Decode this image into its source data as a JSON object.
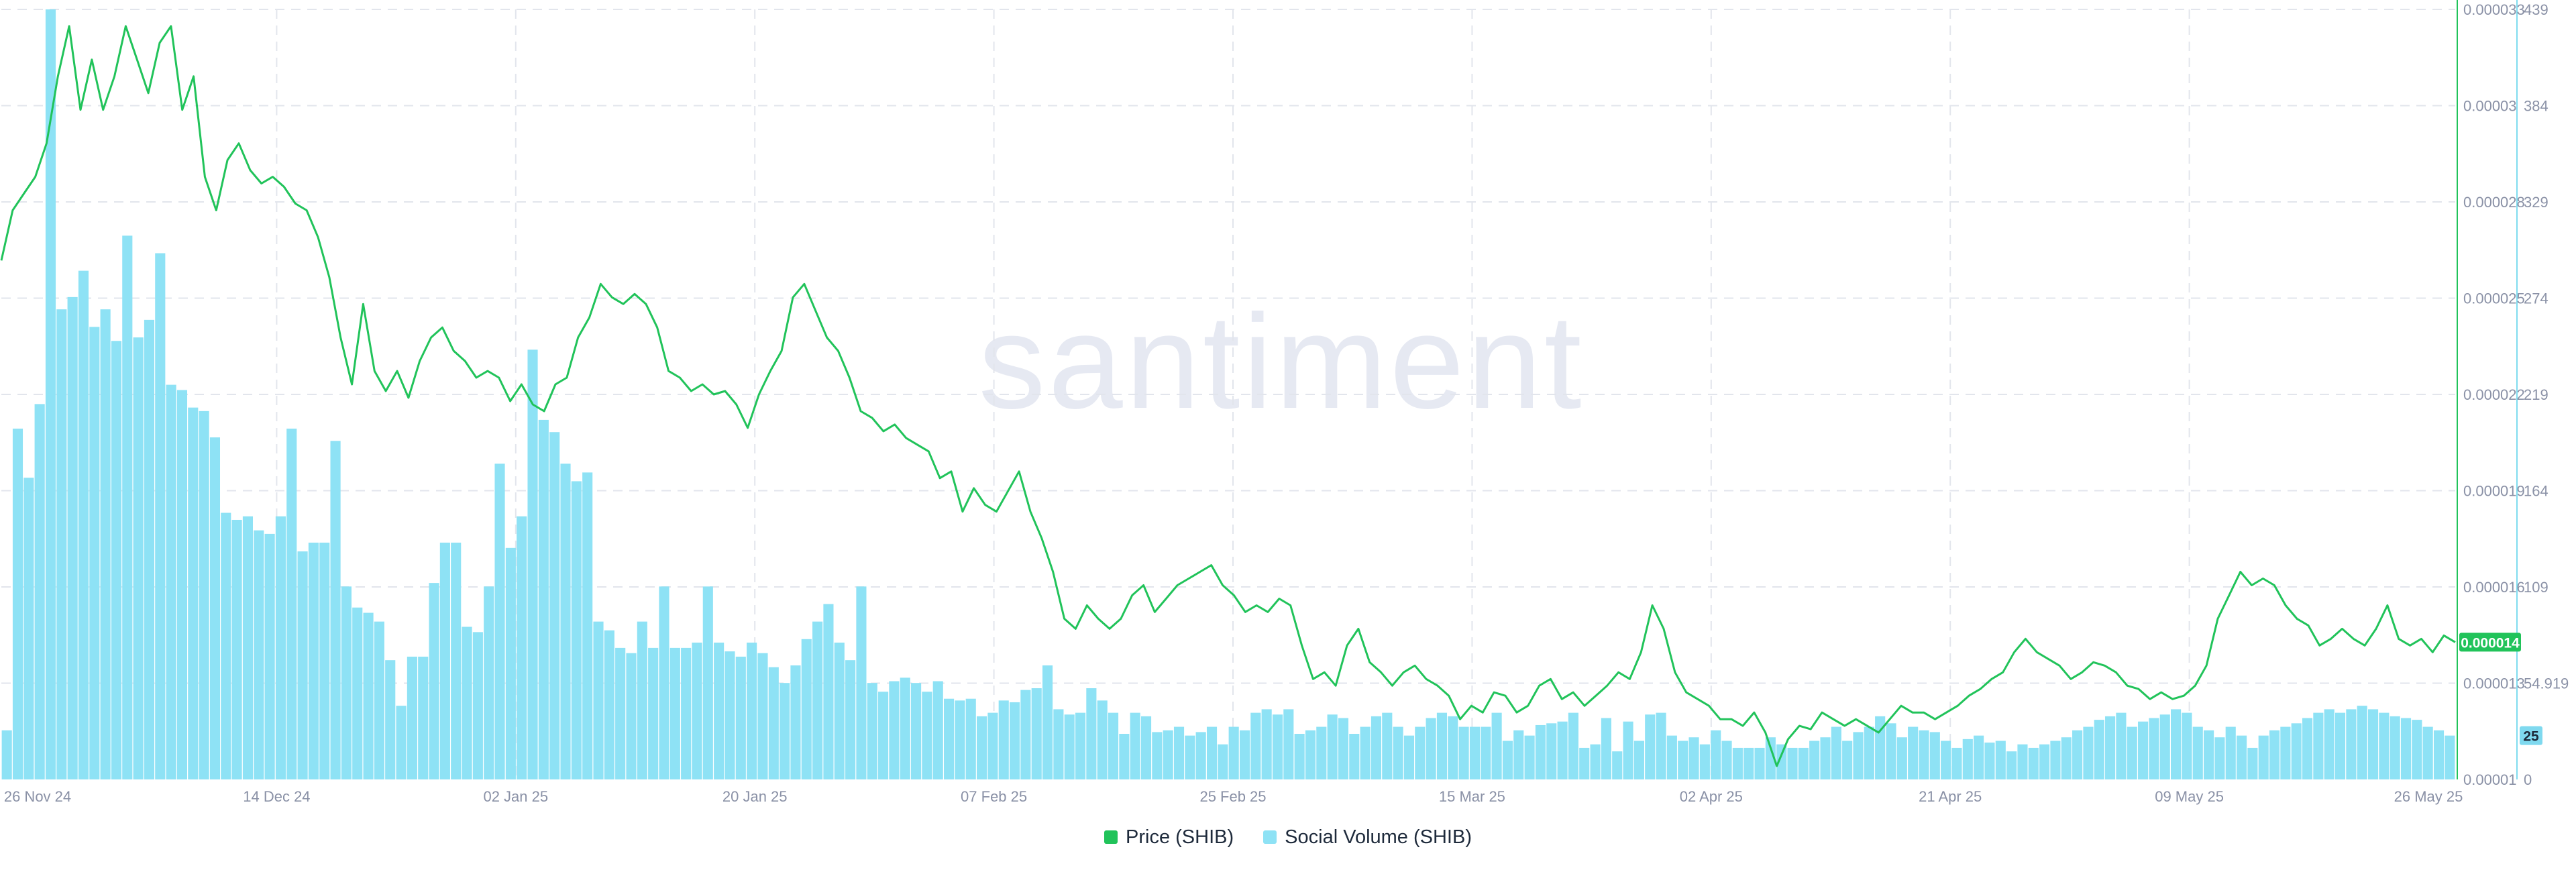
{
  "watermark": "santiment",
  "colors": {
    "price": "#21c35a",
    "volume": "#8ee2f5",
    "axis_text": "#8a91a6",
    "grid": "#e2e5ec",
    "price_badge": "#21c35a",
    "volume_badge": "#7fd9ef"
  },
  "chart_data": {
    "type": "bar",
    "x_ticks": [
      "26 Nov 24",
      "14 Dec 24",
      "02 Jan 25",
      "20 Jan 25",
      "07 Feb 25",
      "25 Feb 25",
      "15 Mar 25",
      "02 Apr 25",
      "21 Apr 25",
      "09 May 25",
      "26 May 25"
    ],
    "x_range": [
      "2024-11-26",
      "2025-05-26"
    ],
    "legend": [
      {
        "name": "Price (SHIB)",
        "color": "#21c35a"
      },
      {
        "name": "Social Volume (SHIB)",
        "color": "#8ee2f5"
      }
    ],
    "price_axis": {
      "ticks": [
        "0.000033",
        "0.00003",
        "0.000028",
        "0.000025",
        "0.000022",
        "0.000019",
        "0.000016",
        "0.000013",
        "0.00001"
      ],
      "tick_values": [
        3.3e-05,
        3e-05,
        2.8e-05,
        2.5e-05,
        2.2e-05,
        1.9e-05,
        1.6e-05,
        1.3e-05,
        1e-05
      ],
      "range": [
        1e-05,
        3.3e-05
      ],
      "current_label": "0.000014",
      "current_value": 1.41e-05
    },
    "volume_axis": {
      "ticks": [
        "439",
        "384",
        "329",
        "274",
        "219",
        "164",
        "109",
        "54.919",
        "0"
      ],
      "tick_values": [
        439,
        384,
        329,
        274,
        219,
        164,
        109,
        54.919,
        0
      ],
      "range": [
        0,
        439
      ],
      "current_label": "25",
      "current_value": 25
    },
    "series": [
      {
        "name": "Social Volume (SHIB)",
        "type": "bar",
        "axis": "right",
        "values": [
          28,
          200,
          172,
          214,
          439,
          268,
          275,
          290,
          258,
          268,
          250,
          310,
          252,
          262,
          300,
          225,
          222,
          212,
          210,
          195,
          152,
          148,
          150,
          142,
          140,
          150,
          200,
          130,
          135,
          135,
          193,
          110,
          98,
          95,
          90,
          68,
          42,
          70,
          70,
          112,
          135,
          135,
          87,
          84,
          110,
          180,
          132,
          150,
          245,
          205,
          198,
          180,
          170,
          175,
          90,
          85,
          75,
          72,
          90,
          75,
          110,
          75,
          75,
          78,
          110,
          78,
          73,
          70,
          78,
          72,
          64,
          55,
          65,
          80,
          90,
          100,
          78,
          68,
          110,
          55,
          50,
          56,
          58,
          55,
          50,
          56,
          46,
          45,
          46,
          36,
          38,
          45,
          44,
          51,
          52,
          65,
          40,
          37,
          38,
          52,
          45,
          38,
          26,
          38,
          36,
          27,
          28,
          30,
          25,
          27,
          30,
          20,
          30,
          28,
          38,
          40,
          37,
          40,
          26,
          28,
          30,
          37,
          35,
          26,
          30,
          36,
          38,
          30,
          25,
          30,
          35,
          38,
          36,
          30,
          30,
          30,
          38,
          22,
          28,
          25,
          31,
          32,
          33,
          38,
          18,
          20,
          35,
          16,
          33,
          22,
          37,
          38,
          25,
          22,
          24,
          20,
          28,
          22,
          18,
          18,
          18,
          24,
          20,
          18,
          18,
          22,
          24,
          30,
          22,
          27,
          30,
          36,
          32,
          24,
          30,
          28,
          27,
          22,
          18,
          23,
          25,
          21,
          22,
          16,
          20,
          18,
          20,
          22,
          24,
          28,
          30,
          34,
          36,
          38,
          30,
          33,
          35,
          37,
          40,
          38,
          30,
          28,
          24,
          30,
          25,
          18,
          25,
          28,
          30,
          32,
          35,
          38,
          40,
          38,
          40,
          42,
          40,
          38,
          36,
          35,
          34,
          30,
          28,
          25
        ]
      },
      {
        "name": "Price (SHIB)",
        "type": "line",
        "axis": "left",
        "values": [
          2.55e-05,
          2.7e-05,
          2.75e-05,
          2.8e-05,
          2.9e-05,
          3.1e-05,
          3.25e-05,
          3e-05,
          3.15e-05,
          3e-05,
          3.1e-05,
          3.25e-05,
          3.15e-05,
          3.05e-05,
          3.2e-05,
          3.25e-05,
          3e-05,
          3.1e-05,
          2.8e-05,
          2.7e-05,
          2.85e-05,
          2.9e-05,
          2.82e-05,
          2.78e-05,
          2.8e-05,
          2.77e-05,
          2.72e-05,
          2.7e-05,
          2.62e-05,
          2.5e-05,
          2.32e-05,
          2.18e-05,
          2.42e-05,
          2.22e-05,
          2.16e-05,
          2.22e-05,
          2.14e-05,
          2.25e-05,
          2.32e-05,
          2.35e-05,
          2.28e-05,
          2.25e-05,
          2.2e-05,
          2.22e-05,
          2.2e-05,
          2.13e-05,
          2.18e-05,
          2.12e-05,
          2.1e-05,
          2.18e-05,
          2.2e-05,
          2.32e-05,
          2.38e-05,
          2.48e-05,
          2.44e-05,
          2.42e-05,
          2.45e-05,
          2.42e-05,
          2.35e-05,
          2.22e-05,
          2.2e-05,
          2.16e-05,
          2.18e-05,
          2.15e-05,
          2.16e-05,
          2.12e-05,
          2.05e-05,
          2.15e-05,
          2.22e-05,
          2.28e-05,
          2.44e-05,
          2.48e-05,
          2.4e-05,
          2.32e-05,
          2.28e-05,
          2.2e-05,
          2.1e-05,
          2.08e-05,
          2.04e-05,
          2.06e-05,
          2.02e-05,
          2e-05,
          1.98e-05,
          1.9e-05,
          1.92e-05,
          1.8e-05,
          1.87e-05,
          1.82e-05,
          1.8e-05,
          1.86e-05,
          1.92e-05,
          1.8e-05,
          1.72e-05,
          1.62e-05,
          1.48e-05,
          1.45e-05,
          1.52e-05,
          1.48e-05,
          1.45e-05,
          1.48e-05,
          1.55e-05,
          1.58e-05,
          1.5e-05,
          1.54e-05,
          1.58e-05,
          1.6e-05,
          1.62e-05,
          1.64e-05,
          1.58e-05,
          1.55e-05,
          1.5e-05,
          1.52e-05,
          1.5e-05,
          1.54e-05,
          1.52e-05,
          1.4e-05,
          1.3e-05,
          1.32e-05,
          1.28e-05,
          1.4e-05,
          1.45e-05,
          1.35e-05,
          1.32e-05,
          1.28e-05,
          1.32e-05,
          1.34e-05,
          1.3e-05,
          1.28e-05,
          1.25e-05,
          1.18e-05,
          1.22e-05,
          1.2e-05,
          1.26e-05,
          1.25e-05,
          1.2e-05,
          1.22e-05,
          1.28e-05,
          1.3e-05,
          1.24e-05,
          1.26e-05,
          1.22e-05,
          1.25e-05,
          1.28e-05,
          1.32e-05,
          1.3e-05,
          1.38e-05,
          1.52e-05,
          1.45e-05,
          1.32e-05,
          1.26e-05,
          1.24e-05,
          1.22e-05,
          1.18e-05,
          1.18e-05,
          1.16e-05,
          1.2e-05,
          1.14e-05,
          1.04e-05,
          1.12e-05,
          1.16e-05,
          1.15e-05,
          1.2e-05,
          1.18e-05,
          1.16e-05,
          1.18e-05,
          1.16e-05,
          1.14e-05,
          1.18e-05,
          1.22e-05,
          1.2e-05,
          1.2e-05,
          1.18e-05,
          1.2e-05,
          1.22e-05,
          1.25e-05,
          1.27e-05,
          1.3e-05,
          1.32e-05,
          1.38e-05,
          1.42e-05,
          1.38e-05,
          1.36e-05,
          1.34e-05,
          1.3e-05,
          1.32e-05,
          1.35e-05,
          1.34e-05,
          1.32e-05,
          1.28e-05,
          1.27e-05,
          1.24e-05,
          1.26e-05,
          1.24e-05,
          1.25e-05,
          1.28e-05,
          1.34e-05,
          1.48e-05,
          1.55e-05,
          1.62e-05,
          1.58e-05,
          1.6e-05,
          1.58e-05,
          1.52e-05,
          1.48e-05,
          1.46e-05,
          1.4e-05,
          1.42e-05,
          1.45e-05,
          1.42e-05,
          1.4e-05,
          1.45e-05,
          1.52e-05,
          1.42e-05,
          1.4e-05,
          1.42e-05,
          1.38e-05,
          1.43e-05,
          1.41e-05
        ]
      }
    ],
    "grid": true,
    "legend_position": "bottom-center"
  }
}
